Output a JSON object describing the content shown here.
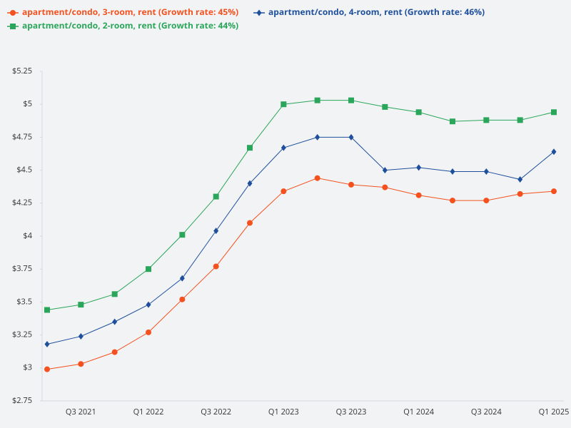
{
  "chart_data": {
    "type": "line",
    "categories": [
      null,
      "Q3 2021",
      null,
      "Q1 2022",
      null,
      "Q3 2022",
      null,
      "Q1 2023",
      null,
      "Q3 2023",
      null,
      "Q1 2024",
      null,
      "Q3 2024",
      null,
      "Q1 2025"
    ],
    "series": [
      {
        "name": "apartment/condo, 3-room, rent (Growth rate: 45%)",
        "color": "#f4511e",
        "marker": "circle",
        "values": [
          2.99,
          3.03,
          3.12,
          3.27,
          3.52,
          3.77,
          4.1,
          4.34,
          4.44,
          4.39,
          4.37,
          4.31,
          4.27,
          4.27,
          4.32,
          4.34
        ]
      },
      {
        "name": "apartment/condo, 4-room, rent (Growth rate: 46%)",
        "color": "#1e4f9c",
        "marker": "diamond",
        "values": [
          3.18,
          3.24,
          3.35,
          3.48,
          3.68,
          4.04,
          4.4,
          4.67,
          4.75,
          4.75,
          4.5,
          4.52,
          4.49,
          4.49,
          4.43,
          4.64
        ]
      },
      {
        "name": "apartment/condo, 2-room, rent (Growth rate: 44%)",
        "color": "#2aa65a",
        "marker": "square",
        "values": [
          3.44,
          3.48,
          3.56,
          3.75,
          4.01,
          4.3,
          4.67,
          5.0,
          5.03,
          5.03,
          4.98,
          4.94,
          4.87,
          4.88,
          4.88,
          4.94
        ]
      }
    ],
    "ylim": [
      2.75,
      5.25
    ],
    "yticks": [
      {
        "value": 2.75,
        "label": "$2.75"
      },
      {
        "value": 3,
        "label": "$3"
      },
      {
        "value": 3.25,
        "label": "$3.25"
      },
      {
        "value": 3.5,
        "label": "$3.5"
      },
      {
        "value": 3.75,
        "label": "$3.75"
      },
      {
        "value": 4,
        "label": "$4"
      },
      {
        "value": 4.25,
        "label": "$4.25"
      },
      {
        "value": 4.5,
        "label": "$4.5"
      },
      {
        "value": 4.75,
        "label": "$4.75"
      },
      {
        "value": 5,
        "label": "$5"
      },
      {
        "value": 5.25,
        "label": "$5.25"
      }
    ],
    "grid": false,
    "legend": "top"
  }
}
